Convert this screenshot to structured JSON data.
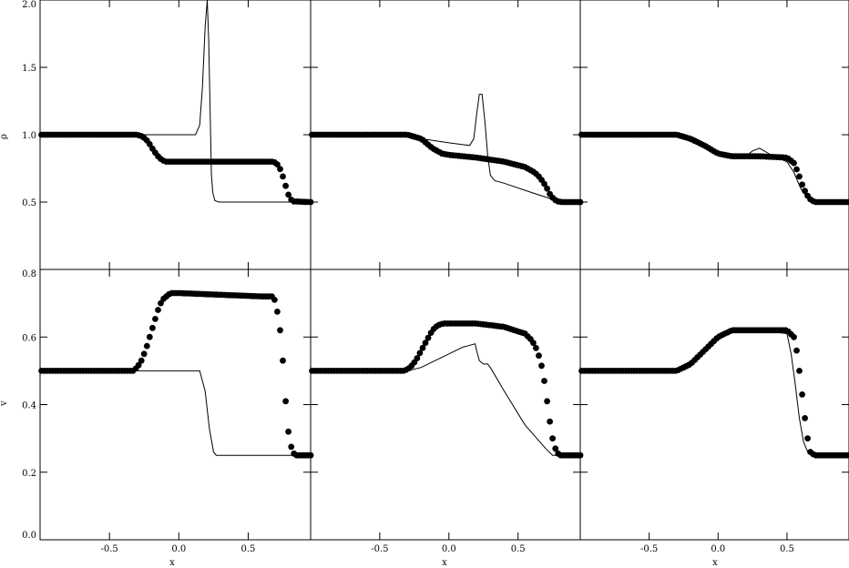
{
  "figure": {
    "ylabels": [
      "ρ",
      "v"
    ],
    "xlabel": "x"
  },
  "chart_data": {
    "type": "line",
    "layout": "2 rows × 3 columns, shared axes",
    "xlim": [
      -1.0,
      0.95
    ],
    "xticks": [
      -0.5,
      0.0,
      0.5
    ],
    "xtick_labels": [
      "-0.5",
      "0.0",
      "0.5"
    ],
    "rows": [
      {
        "ylabel": "ρ",
        "ylim": [
          0.0,
          2.0
        ],
        "yticks": [
          0.5,
          1.0,
          1.5,
          2.0
        ],
        "ytick_labels": [
          "0.5",
          "1.0",
          "1.5",
          "2.0"
        ]
      },
      {
        "ylabel": "v",
        "ylim": [
          0.0,
          0.8
        ],
        "yticks": [
          0.0,
          0.2,
          0.4,
          0.6,
          0.8
        ],
        "ytick_labels": [
          "0.0",
          "0.2",
          "0.4",
          "0.6",
          "0.8"
        ]
      }
    ],
    "panels": [
      {
        "row": 0,
        "col": 0,
        "series": [
          {
            "style": "line",
            "x": [
              -1.0,
              0.12,
              0.15,
              0.17,
              0.19,
              0.205,
              0.215,
              0.225,
              0.235,
              0.245,
              0.26,
              0.29,
              0.95
            ],
            "y": [
              1.0,
              1.0,
              1.07,
              1.35,
              1.8,
              2.0,
              1.7,
              1.2,
              0.7,
              0.57,
              0.51,
              0.5,
              0.5
            ]
          },
          {
            "style": "dots",
            "x": [
              -1.0,
              -0.3,
              -0.27,
              -0.24,
              -0.21,
              -0.18,
              -0.15,
              -0.12,
              -0.09,
              0.68,
              0.7,
              0.72,
              0.74,
              0.76,
              0.78,
              0.8,
              0.82,
              0.95
            ],
            "y": [
              1.0,
              1.0,
              0.99,
              0.97,
              0.93,
              0.88,
              0.84,
              0.81,
              0.8,
              0.8,
              0.79,
              0.77,
              0.72,
              0.66,
              0.58,
              0.53,
              0.505,
              0.5
            ]
          }
        ]
      },
      {
        "row": 0,
        "col": 1,
        "series": [
          {
            "style": "line",
            "x": [
              -1.0,
              -0.3,
              -0.25,
              -0.2,
              0.0,
              0.15,
              0.18,
              0.2,
              0.22,
              0.24,
              0.26,
              0.28,
              0.3,
              0.33,
              0.4,
              0.6,
              0.75,
              0.8,
              0.95
            ],
            "y": [
              1.0,
              1.0,
              0.99,
              0.97,
              0.94,
              0.92,
              0.97,
              1.15,
              1.3,
              1.3,
              1.1,
              0.85,
              0.7,
              0.66,
              0.64,
              0.57,
              0.52,
              0.5,
              0.5
            ]
          },
          {
            "style": "dots",
            "x": [
              -1.0,
              -0.3,
              -0.2,
              -0.12,
              -0.05,
              0.0,
              0.2,
              0.4,
              0.55,
              0.62,
              0.66,
              0.7,
              0.73,
              0.76,
              0.79,
              0.82,
              0.95
            ],
            "y": [
              1.0,
              1.0,
              0.97,
              0.9,
              0.86,
              0.85,
              0.83,
              0.8,
              0.76,
              0.72,
              0.68,
              0.62,
              0.56,
              0.52,
              0.505,
              0.5,
              0.5
            ]
          }
        ]
      },
      {
        "row": 0,
        "col": 2,
        "series": [
          {
            "style": "line",
            "x": [
              -1.0,
              -0.3,
              -0.2,
              -0.1,
              0.0,
              0.1,
              0.2,
              0.25,
              0.3,
              0.35,
              0.4,
              0.5,
              0.55,
              0.6,
              0.65,
              0.7,
              0.95
            ],
            "y": [
              1.0,
              1.0,
              0.97,
              0.92,
              0.86,
              0.84,
              0.84,
              0.88,
              0.9,
              0.87,
              0.84,
              0.8,
              0.72,
              0.6,
              0.53,
              0.5,
              0.5
            ]
          },
          {
            "style": "dots",
            "x": [
              -1.0,
              -0.3,
              -0.2,
              -0.1,
              0.0,
              0.1,
              0.3,
              0.5,
              0.55,
              0.58,
              0.61,
              0.64,
              0.67,
              0.7,
              0.95
            ],
            "y": [
              1.0,
              1.0,
              0.97,
              0.92,
              0.86,
              0.84,
              0.84,
              0.83,
              0.79,
              0.72,
              0.63,
              0.56,
              0.52,
              0.5,
              0.5
            ]
          }
        ]
      },
      {
        "row": 1,
        "col": 0,
        "series": [
          {
            "style": "line",
            "x": [
              -1.0,
              0.15,
              0.17,
              0.19,
              0.22,
              0.25,
              0.27,
              0.95
            ],
            "y": [
              0.5,
              0.5,
              0.47,
              0.44,
              0.33,
              0.26,
              0.25,
              0.25
            ]
          },
          {
            "style": "dots",
            "x": [
              -1.0,
              -0.33,
              -0.3,
              -0.27,
              -0.24,
              -0.21,
              -0.18,
              -0.15,
              -0.12,
              -0.09,
              -0.06,
              -0.03,
              0.0,
              0.6,
              0.68,
              0.7,
              0.72,
              0.74,
              0.76,
              0.78,
              0.8,
              0.82,
              0.84,
              0.95
            ],
            "y": [
              0.5,
              0.5,
              0.51,
              0.53,
              0.56,
              0.6,
              0.64,
              0.68,
              0.71,
              0.72,
              0.73,
              0.73,
              0.73,
              0.72,
              0.72,
              0.7,
              0.65,
              0.59,
              0.47,
              0.35,
              0.29,
              0.26,
              0.25,
              0.25
            ]
          }
        ]
      },
      {
        "row": 1,
        "col": 1,
        "series": [
          {
            "style": "line",
            "x": [
              -1.0,
              -0.3,
              -0.2,
              -0.1,
              0.0,
              0.1,
              0.19,
              0.2,
              0.22,
              0.25,
              0.28,
              0.3,
              0.4,
              0.55,
              0.7,
              0.75,
              0.8,
              0.95
            ],
            "y": [
              0.5,
              0.5,
              0.51,
              0.53,
              0.55,
              0.57,
              0.58,
              0.56,
              0.53,
              0.52,
              0.52,
              0.51,
              0.44,
              0.34,
              0.27,
              0.25,
              0.25,
              0.25
            ]
          },
          {
            "style": "dots",
            "x": [
              -1.0,
              -0.32,
              -0.28,
              -0.24,
              -0.2,
              -0.16,
              -0.12,
              -0.08,
              -0.04,
              0.0,
              0.2,
              0.4,
              0.55,
              0.6,
              0.64,
              0.68,
              0.7,
              0.72,
              0.74,
              0.76,
              0.78,
              0.8,
              0.95
            ],
            "y": [
              0.5,
              0.5,
              0.51,
              0.53,
              0.56,
              0.59,
              0.62,
              0.635,
              0.64,
              0.64,
              0.64,
              0.63,
              0.61,
              0.59,
              0.56,
              0.5,
              0.44,
              0.38,
              0.32,
              0.28,
              0.26,
              0.25,
              0.25
            ]
          }
        ]
      },
      {
        "row": 1,
        "col": 2,
        "series": [
          {
            "style": "line",
            "x": [
              -1.0,
              -0.3,
              -0.2,
              -0.1,
              0.0,
              0.1,
              0.3,
              0.5,
              0.53,
              0.56,
              0.59,
              0.62,
              0.65,
              0.68,
              0.95
            ],
            "y": [
              0.5,
              0.5,
              0.52,
              0.56,
              0.6,
              0.62,
              0.62,
              0.61,
              0.55,
              0.46,
              0.36,
              0.29,
              0.26,
              0.25,
              0.25
            ]
          },
          {
            "style": "dots",
            "x": [
              -1.0,
              -0.3,
              -0.2,
              -0.1,
              0.0,
              0.1,
              0.3,
              0.5,
              0.55,
              0.57,
              0.59,
              0.61,
              0.63,
              0.65,
              0.67,
              0.7,
              0.95
            ],
            "y": [
              0.5,
              0.5,
              0.52,
              0.56,
              0.6,
              0.62,
              0.62,
              0.62,
              0.6,
              0.56,
              0.5,
              0.43,
              0.36,
              0.3,
              0.26,
              0.25,
              0.25
            ]
          }
        ]
      }
    ]
  }
}
